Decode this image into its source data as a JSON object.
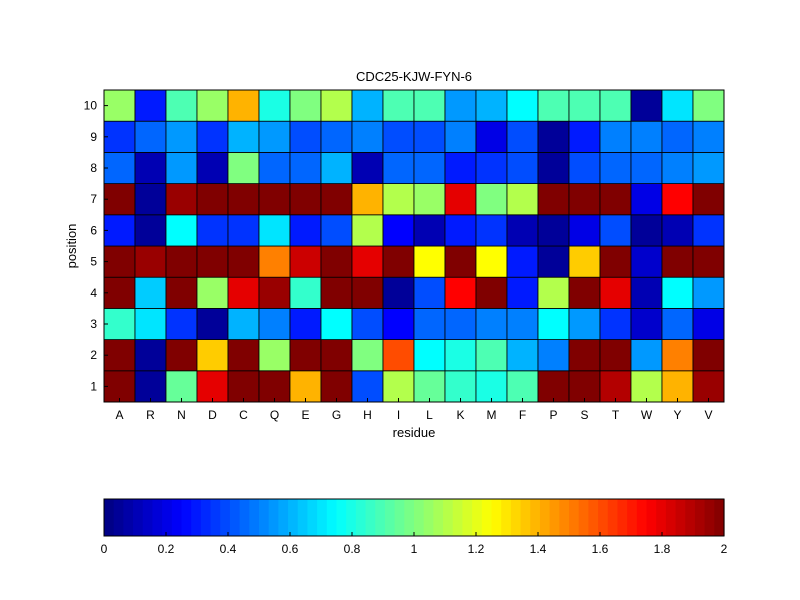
{
  "chart_data": {
    "type": "heatmap",
    "title": "CDC25-KJW-FYN-6",
    "xlabel": "residue",
    "ylabel": "position",
    "x": [
      "A",
      "R",
      "N",
      "D",
      "C",
      "Q",
      "E",
      "G",
      "H",
      "I",
      "L",
      "K",
      "M",
      "F",
      "P",
      "S",
      "T",
      "W",
      "Y",
      "V"
    ],
    "y": [
      "1",
      "2",
      "3",
      "4",
      "5",
      "6",
      "7",
      "8",
      "9",
      "10"
    ],
    "values": [
      [
        2.0,
        0.05,
        0.95,
        1.8,
        2.0,
        2.0,
        1.4,
        2.0,
        0.4,
        1.1,
        0.95,
        0.85,
        0.8,
        0.9,
        2.0,
        2.0,
        1.9,
        1.1,
        1.4,
        1.95
      ],
      [
        2.0,
        0.05,
        2.0,
        1.35,
        2.0,
        1.05,
        2.0,
        2.0,
        1.0,
        1.6,
        0.75,
        0.8,
        0.9,
        0.6,
        0.5,
        2.0,
        2.0,
        0.55,
        1.5,
        2.0
      ],
      [
        0.85,
        0.7,
        0.35,
        0.05,
        0.6,
        0.5,
        0.3,
        0.75,
        0.4,
        0.25,
        0.45,
        0.45,
        0.5,
        0.5,
        0.75,
        0.55,
        0.35,
        0.15,
        0.45,
        0.2
      ],
      [
        2.0,
        0.65,
        2.0,
        1.05,
        1.8,
        1.95,
        0.85,
        2.0,
        2.0,
        0.05,
        0.4,
        1.75,
        2.0,
        0.3,
        1.1,
        2.0,
        1.8,
        0.1,
        0.75,
        0.55
      ],
      [
        2.0,
        1.95,
        2.0,
        2.0,
        2.0,
        1.5,
        1.85,
        2.0,
        1.8,
        2.0,
        1.25,
        2.0,
        1.25,
        0.3,
        0.05,
        1.35,
        2.0,
        0.15,
        2.0,
        2.0
      ],
      [
        0.3,
        0.05,
        0.75,
        0.35,
        0.35,
        0.7,
        0.3,
        0.4,
        1.1,
        0.25,
        0.1,
        0.3,
        0.35,
        0.1,
        0.05,
        0.2,
        0.4,
        0.05,
        0.1,
        0.35
      ],
      [
        2.0,
        0.05,
        1.95,
        2.0,
        2.0,
        2.0,
        2.0,
        2.0,
        1.4,
        1.1,
        1.05,
        1.8,
        1.0,
        1.1,
        2.0,
        2.0,
        2.0,
        0.2,
        1.75,
        2.0
      ],
      [
        0.45,
        0.1,
        0.55,
        0.1,
        1.0,
        0.45,
        0.45,
        0.6,
        0.1,
        0.45,
        0.45,
        0.3,
        0.35,
        0.4,
        0.05,
        0.4,
        0.45,
        0.45,
        0.5,
        0.55
      ],
      [
        0.35,
        0.45,
        0.55,
        0.35,
        0.6,
        0.55,
        0.4,
        0.45,
        0.5,
        0.4,
        0.4,
        0.5,
        0.2,
        0.4,
        0.05,
        0.3,
        0.5,
        0.5,
        0.45,
        0.5
      ],
      [
        1.05,
        0.3,
        0.9,
        1.05,
        1.4,
        0.8,
        1.0,
        1.1,
        0.6,
        0.9,
        0.9,
        0.55,
        0.6,
        0.75,
        0.9,
        0.9,
        0.9,
        0.05,
        0.7,
        1.0
      ]
    ],
    "colorbar": {
      "min": 0,
      "max": 2,
      "ticks": [
        "0",
        "0.2",
        "0.4",
        "0.6",
        "0.8",
        "1",
        "1.2",
        "1.4",
        "1.6",
        "1.8",
        "2"
      ],
      "colormap": "jet"
    }
  }
}
